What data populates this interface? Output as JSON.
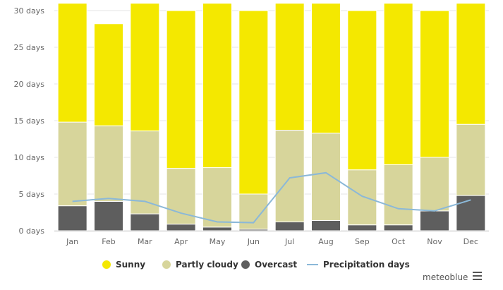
{
  "chart_data": {
    "type": "bar",
    "stacked": true,
    "categories": [
      "Jan",
      "Feb",
      "Mar",
      "Apr",
      "May",
      "Jun",
      "Jul",
      "Aug",
      "Sep",
      "Oct",
      "Nov",
      "Dec"
    ],
    "series": [
      {
        "name": "Overcast",
        "kind": "bar",
        "color": "#5e5e5e",
        "values": [
          3.4,
          4.0,
          2.3,
          0.9,
          0.5,
          0.2,
          1.2,
          1.4,
          0.8,
          0.8,
          2.7,
          4.8
        ]
      },
      {
        "name": "Partly cloudy",
        "kind": "bar",
        "color": "#d7d59b",
        "values": [
          11.4,
          10.3,
          11.3,
          7.6,
          8.1,
          4.8,
          12.5,
          11.9,
          7.5,
          8.2,
          7.3,
          9.7
        ]
      },
      {
        "name": "Sunny",
        "kind": "bar",
        "color": "#f4e800",
        "values": [
          16.2,
          13.9,
          17.4,
          21.5,
          22.4,
          25.0,
          17.3,
          17.7,
          21.7,
          22.0,
          20.0,
          16.5
        ]
      },
      {
        "name": "Precipitation days",
        "kind": "line",
        "color": "#8bb8d8",
        "values": [
          4.0,
          4.4,
          4.0,
          2.4,
          1.2,
          1.1,
          7.2,
          7.9,
          4.7,
          3.0,
          2.7,
          4.2
        ]
      }
    ],
    "ylim": [
      0,
      30
    ],
    "yticks": [
      0,
      5,
      10,
      15,
      20,
      25,
      30
    ],
    "ytick_labels": [
      "0 days",
      "5 days",
      "10 days",
      "15 days",
      "20 days",
      "25 days",
      "30 days"
    ],
    "legend_position": "bottom",
    "legend": [
      {
        "label": "Sunny",
        "color": "#f4e800",
        "marker": "circle"
      },
      {
        "label": "Partly cloudy",
        "color": "#d7d59b",
        "marker": "circle"
      },
      {
        "label": "Overcast",
        "color": "#5e5e5e",
        "marker": "circle"
      },
      {
        "label": "Precipitation days",
        "color": "#8bb8d8",
        "marker": "line"
      }
    ],
    "grid": true
  },
  "branding": {
    "text": "meteoblue",
    "menu_icon": "hamburger-menu-icon"
  }
}
